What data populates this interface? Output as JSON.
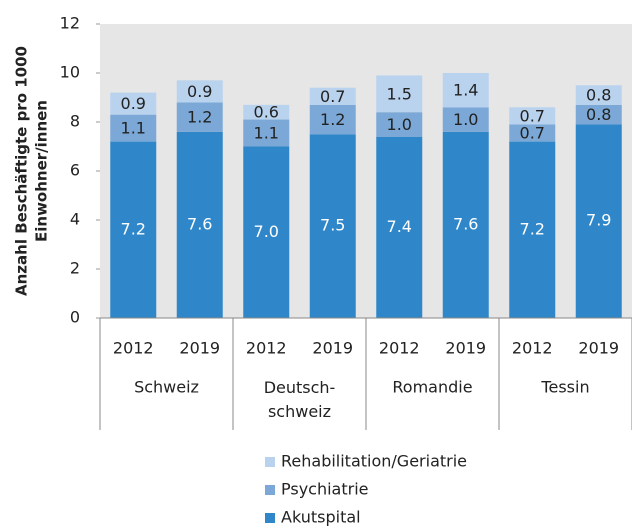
{
  "chart_data": {
    "type": "stacked_bar",
    "y_label": [
      "Anzahl Beschäftigte pro 1000",
      "Einwohner/innen"
    ],
    "categories": [
      "2012",
      "2019",
      "2012",
      "2019",
      "2012",
      "2019",
      "2012",
      "2019"
    ],
    "groups": [
      "Schweiz",
      "Deutsch-\nschweiz",
      "Romandie",
      "Tessin"
    ],
    "series": [
      {
        "name": "Akutspital",
        "color": "#2f87c9",
        "values": [
          7.2,
          7.6,
          7.0,
          7.5,
          7.4,
          7.6,
          7.2,
          7.9
        ],
        "value_labels": [
          "7.2",
          "7.6",
          "7.0",
          "7.5",
          "7.4",
          "7.6",
          "7.2",
          "7.9"
        ]
      },
      {
        "name": "Psychiatrie",
        "color": "#7ba8d6",
        "values": [
          1.1,
          1.2,
          1.1,
          1.2,
          1.0,
          1.0,
          0.7,
          0.8
        ],
        "value_labels": [
          "1.1",
          "1.2",
          "1.1",
          "1.2",
          "1.0",
          "1.0",
          "0.7",
          "0.8"
        ]
      },
      {
        "name": "Rehabilitation/Geriatrie",
        "color": "#b9d2ee",
        "values": [
          0.9,
          0.9,
          0.6,
          0.7,
          1.5,
          1.4,
          0.7,
          0.8
        ],
        "value_labels": [
          "0.9",
          "0.9",
          "0.6",
          "0.7",
          "1.5",
          "1.4",
          "0.7",
          "0.8"
        ]
      }
    ],
    "ylim": [
      0,
      12
    ],
    "yticks": [
      0,
      2,
      4,
      6,
      8,
      10,
      12
    ],
    "grid": false
  }
}
